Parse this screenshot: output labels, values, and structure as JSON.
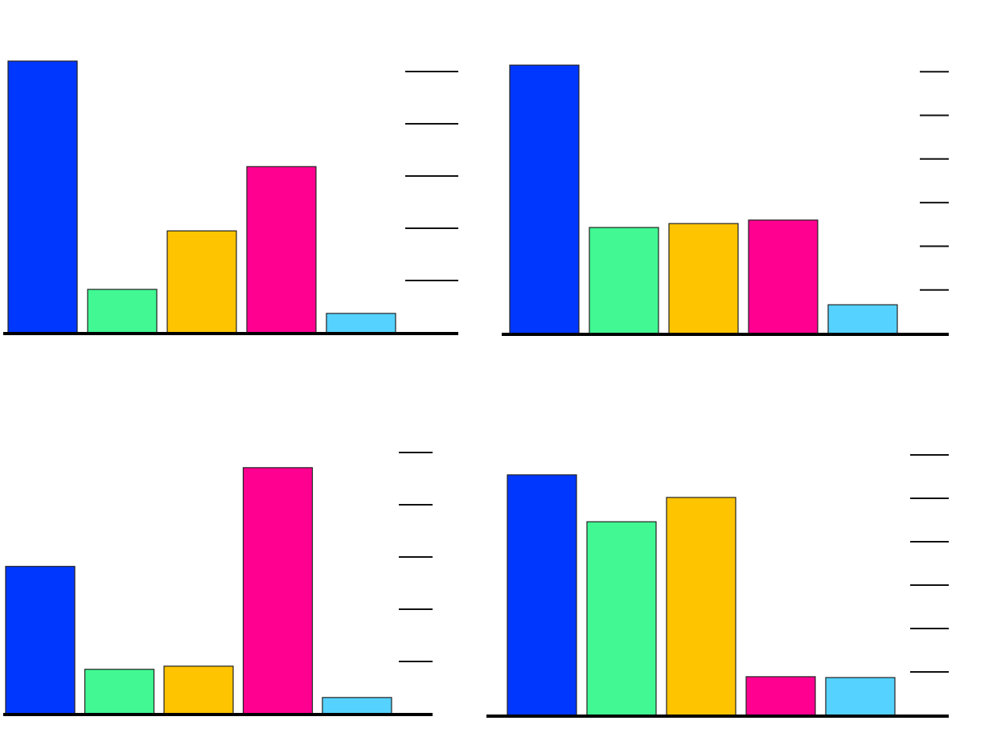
{
  "colors": [
    "#0037ff",
    "#41f893",
    "#ffc400",
    "#ff0090",
    "#55d2ff"
  ],
  "chart_data": [
    {
      "type": "bar",
      "title": "",
      "xlabel": "",
      "ylabel": "",
      "categories": [
        "",
        "",
        "",
        "",
        ""
      ],
      "values": [
        5.2,
        0.83,
        1.95,
        3.18,
        0.37
      ],
      "ylim": [
        0,
        5.4
      ],
      "ticks": [
        1,
        2,
        3,
        4,
        5
      ],
      "tick_side": "right",
      "grid": false,
      "legend": "none"
    },
    {
      "type": "bar",
      "title": "",
      "xlabel": "",
      "ylabel": "",
      "categories": [
        "",
        "",
        "",
        "",
        ""
      ],
      "values": [
        6.15,
        2.43,
        2.52,
        2.6,
        0.66
      ],
      "ylim": [
        0,
        6.4
      ],
      "ticks": [
        1,
        2,
        3,
        4,
        5,
        6
      ],
      "tick_side": "right",
      "grid": false,
      "legend": "none"
    },
    {
      "type": "bar",
      "title": "",
      "xlabel": "",
      "ylabel": "",
      "categories": [
        "",
        "",
        "",
        "",
        ""
      ],
      "values": [
        2.82,
        0.85,
        0.91,
        4.71,
        0.31
      ],
      "ylim": [
        0,
        5.4
      ],
      "ticks": [
        1,
        2,
        3,
        4,
        5
      ],
      "tick_side": "right",
      "grid": false,
      "legend": "none"
    },
    {
      "type": "bar",
      "title": "",
      "xlabel": "",
      "ylabel": "",
      "categories": [
        "",
        "",
        "",
        "",
        ""
      ],
      "values": [
        5.54,
        4.46,
        5.02,
        0.89,
        0.87
      ],
      "ylim": [
        0,
        6.4
      ],
      "ticks": [
        1,
        2,
        3,
        4,
        5,
        6
      ],
      "tick_side": "right",
      "grid": false,
      "legend": "none"
    }
  ]
}
